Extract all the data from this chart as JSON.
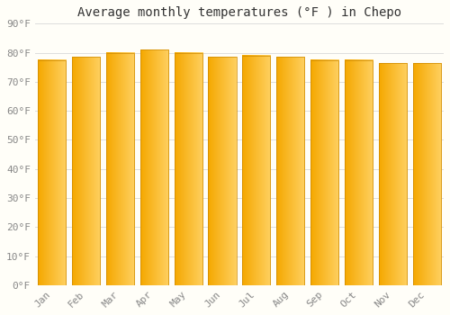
{
  "title": "Average monthly temperatures (°F ) in Chepo",
  "months": [
    "Jan",
    "Feb",
    "Mar",
    "Apr",
    "May",
    "Jun",
    "Jul",
    "Aug",
    "Sep",
    "Oct",
    "Nov",
    "Dec"
  ],
  "values": [
    77.5,
    78.5,
    80.0,
    81.0,
    80.0,
    78.5,
    79.0,
    78.5,
    77.5,
    77.5,
    76.5,
    76.5
  ],
  "bar_color_left": "#F5A800",
  "bar_color_right": "#FFD060",
  "bar_edge_color": "#CC8800",
  "background_color": "#FFFEF8",
  "grid_color": "#DDDDDD",
  "text_color": "#888888",
  "title_color": "#333333",
  "ylim": [
    0,
    90
  ],
  "yticks": [
    0,
    10,
    20,
    30,
    40,
    50,
    60,
    70,
    80,
    90
  ],
  "ytick_labels": [
    "0°F",
    "10°F",
    "20°F",
    "30°F",
    "40°F",
    "50°F",
    "60°F",
    "70°F",
    "80°F",
    "90°F"
  ],
  "title_fontsize": 10,
  "tick_fontsize": 8,
  "font_family": "monospace",
  "bar_width": 0.82,
  "gradient_steps": 60
}
